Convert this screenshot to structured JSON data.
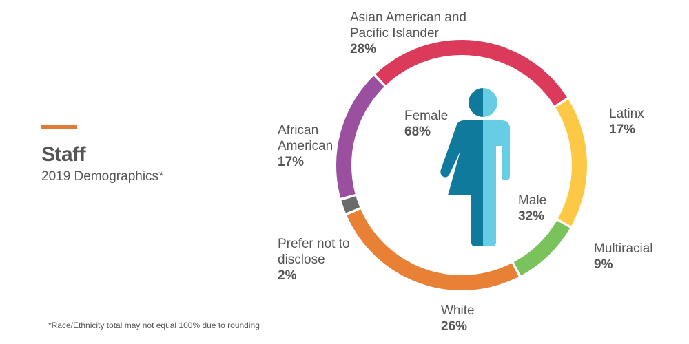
{
  "header": {
    "title": "Staff",
    "subtitle": "2019 Demographics*"
  },
  "footnote": "*Race/Ethnicity total may not equal 100% due to rounding",
  "chart_data": [
    {
      "type": "pie",
      "variant": "donut",
      "slices": [
        {
          "label": "Asian American and Pacific Islander",
          "value": 28,
          "value_label": "28%",
          "color": "#dc3a5a"
        },
        {
          "label": "Latinx",
          "value": 17,
          "value_label": "17%",
          "color": "#fcc846"
        },
        {
          "label": "Multiracial",
          "value": 9,
          "value_label": "9%",
          "color": "#7ac25b"
        },
        {
          "label": "White",
          "value": 26,
          "value_label": "26%",
          "color": "#e88136"
        },
        {
          "label": "Prefer not to disclose",
          "value": 2,
          "value_label": "2%",
          "color": "#6b6b6b"
        },
        {
          "label": "African American",
          "value": 17,
          "value_label": "17%",
          "color": "#9b4f9f"
        }
      ]
    },
    {
      "type": "pie",
      "variant": "figure-split",
      "slices": [
        {
          "label": "Female",
          "value": 68,
          "value_label": "68%",
          "color": "#0f7a9b"
        },
        {
          "label": "Male",
          "value": 32,
          "value_label": "32%",
          "color": "#66cde4"
        }
      ]
    }
  ]
}
